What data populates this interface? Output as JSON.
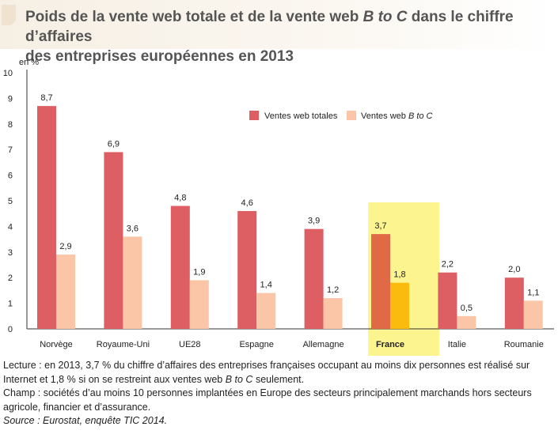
{
  "title": {
    "part1": "Poids de la vente web totale et de la vente web ",
    "italic": "B to C",
    "part2": " dans le chiffre d’affaires",
    "line2": "des entreprises européennes en 2013"
  },
  "chart_data": {
    "type": "bar",
    "categories": [
      "Norvège",
      "Royaume-Uni",
      "UE28",
      "Espagne",
      "Allemagne",
      "France",
      "Italie",
      "Roumanie"
    ],
    "highlight_category": "France",
    "ylabel": "en %",
    "ylim": [
      0,
      10
    ],
    "yticks": [
      0,
      1,
      2,
      3,
      4,
      5,
      6,
      7,
      8,
      9,
      10
    ],
    "series": [
      {
        "name": "Ventes web totales",
        "values": [
          8.7,
          6.9,
          4.8,
          4.6,
          3.9,
          3.7,
          2.2,
          2.0
        ],
        "labels": [
          "8,7",
          "6,9",
          "4,8",
          "4,6",
          "3,9",
          "3,7",
          "2,2",
          "2,0"
        ],
        "color": "#dd5f63",
        "highlight_color": "#e06a45"
      },
      {
        "name_prefix": "Ventes web ",
        "name_italic": "B to C",
        "values": [
          2.9,
          3.6,
          1.9,
          1.4,
          1.2,
          1.8,
          0.5,
          1.1
        ],
        "labels": [
          "2,9",
          "3,6",
          "1,9",
          "1,4",
          "1,2",
          "1,8",
          "0,5",
          "1,1"
        ],
        "color": "#fbc6a8",
        "highlight_color": "#fbba0e"
      }
    ],
    "legend_position": "top-right",
    "highlight_background": "#fbf48f"
  },
  "notes": {
    "lecture_1": "Lecture : en 2013, 3,7 % du chiffre d’affaires des entreprises françaises occupant au moins dix personnes est réalisé sur",
    "lecture_2a": "Internet et 1,8 % si on se restreint aux ventes web ",
    "lecture_2i": "B to C",
    "lecture_2b": " seulement.",
    "champ_1": "Champ : sociétés d’au moins 10 personnes implantées en Europe des secteurs principalement marchands hors secteurs",
    "champ_2": "agricole, financier et d’assurance.",
    "source": "Source : Eurostat, enquête TIC 2014."
  }
}
